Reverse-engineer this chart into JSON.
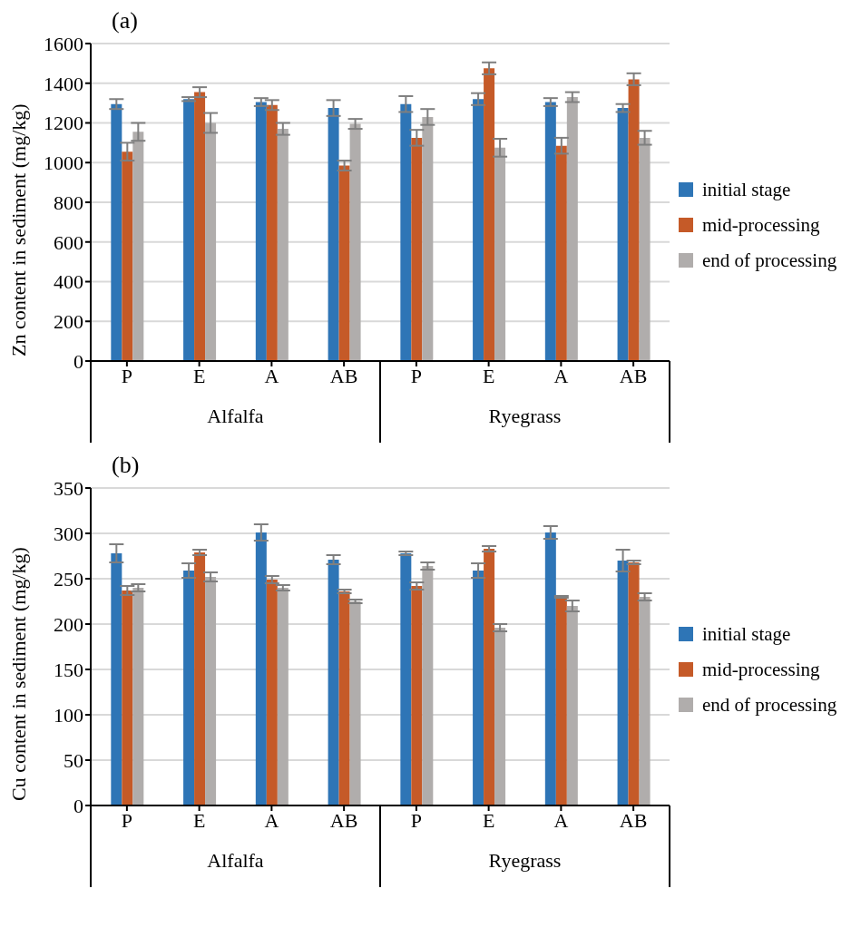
{
  "chart_data": [
    {
      "type": "bar",
      "title": "(a)",
      "ylabel": "Zn content in sediment (mg/kg)",
      "categories": [
        "P",
        "E",
        "A",
        "AB",
        "P",
        "E",
        "A",
        "AB"
      ],
      "annotations": [
        "Alfalfa",
        "Ryegrass"
      ],
      "ylim": [
        0,
        1600
      ],
      "yticks": [
        0,
        200,
        400,
        600,
        800,
        1000,
        1200,
        1400,
        1600
      ],
      "grid": "y",
      "legend": "right",
      "series": [
        {
          "name": "initial stage",
          "color": "#2e75b6",
          "values": [
            1295,
            1320,
            1305,
            1275,
            1295,
            1320,
            1305,
            1275
          ],
          "errors": [
            25,
            10,
            20,
            40,
            40,
            30,
            20,
            20
          ]
        },
        {
          "name": "mid-processing",
          "color": "#c55a28",
          "values": [
            1055,
            1355,
            1290,
            985,
            1125,
            1475,
            1085,
            1420
          ],
          "errors": [
            45,
            25,
            25,
            25,
            40,
            30,
            40,
            30
          ]
        },
        {
          "name": "end of processing",
          "color": "#b0adac",
          "values": [
            1155,
            1200,
            1170,
            1195,
            1230,
            1075,
            1330,
            1125
          ],
          "errors": [
            45,
            50,
            30,
            25,
            40,
            45,
            25,
            35
          ]
        }
      ]
    },
    {
      "type": "bar",
      "title": "(b)",
      "ylabel": "Cu content in sediment (mg/kg)",
      "categories": [
        "P",
        "E",
        "A",
        "AB",
        "P",
        "E",
        "A",
        "AB"
      ],
      "annotations": [
        "Alfalfa",
        "Ryegrass"
      ],
      "ylim": [
        0,
        350
      ],
      "yticks": [
        0,
        50,
        100,
        150,
        200,
        250,
        300,
        350
      ],
      "grid": "y",
      "legend": "right",
      "series": [
        {
          "name": "initial stage",
          "color": "#2e75b6",
          "values": [
            278,
            259,
            301,
            271,
            278,
            259,
            301,
            270
          ],
          "errors": [
            10,
            8,
            9,
            5,
            2,
            8,
            7,
            12
          ]
        },
        {
          "name": "mid-processing",
          "color": "#c55a28",
          "values": [
            237,
            279,
            249,
            236,
            242,
            283,
            230,
            268
          ],
          "errors": [
            5,
            3,
            4,
            2,
            4,
            3,
            1,
            2
          ]
        },
        {
          "name": "end of processing",
          "color": "#b0adac",
          "values": [
            240,
            252,
            240,
            225,
            264,
            196,
            220,
            230
          ],
          "errors": [
            4,
            5,
            3,
            2,
            4,
            4,
            6,
            4
          ]
        }
      ]
    }
  ]
}
